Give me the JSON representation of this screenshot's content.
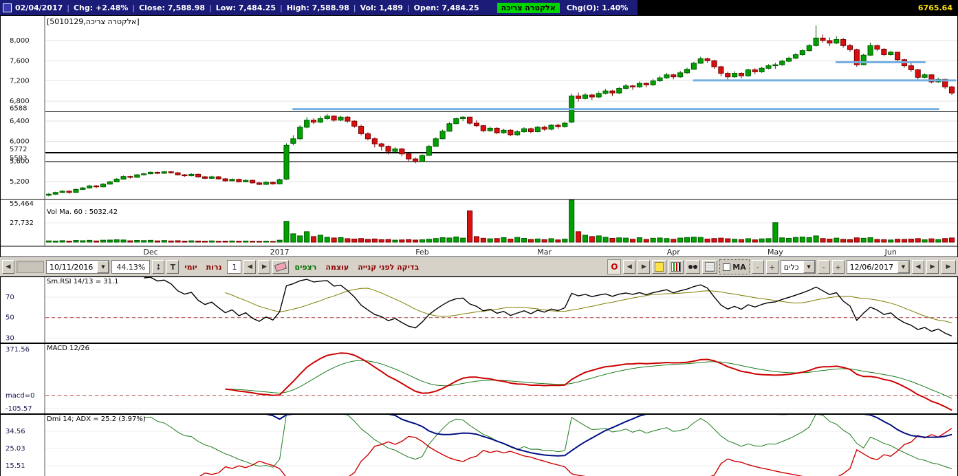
{
  "top_bar": {
    "segments": [
      "02/04/2017",
      "Chg: +2.48%",
      "Close: 7,588.98",
      "Low: 7,484.25",
      "High: 7,588.98",
      "Vol: 1,489",
      "Open: 7,484.25"
    ],
    "symbol_badge": "אלקטרה צריכה",
    "chg_o": "Chg(O): 1.40%",
    "last_value": "6765.64"
  },
  "icons": {
    "left": "◀",
    "right": "▶",
    "down": "▼",
    "up_down": "↕"
  },
  "main_chart": {
    "symbol_label": "[5010129,אלקטרה צריכה]",
    "y_ticks": [
      {
        "value": 8000,
        "label": "8,000"
      },
      {
        "value": 7600,
        "label": "7,600"
      },
      {
        "value": 7200,
        "label": "7,200"
      },
      {
        "value": 6800,
        "label": "6,800"
      },
      {
        "value": 6400,
        "label": "6,400"
      },
      {
        "value": 6000,
        "label": "6,000"
      },
      {
        "value": 5600,
        "label": "5,600"
      },
      {
        "value": 5200,
        "label": "5,200"
      }
    ],
    "price_range": [
      4845,
      8505
    ],
    "support_lines": [
      {
        "value": 6588,
        "label": "6588",
        "weight": 1
      },
      {
        "value": 5772,
        "label": "5772",
        "weight": 2
      },
      {
        "value": 5593,
        "label": "5593",
        "weight": 1
      }
    ],
    "blue_lines": [
      {
        "value": 6640,
        "from": 36,
        "to": 131
      },
      {
        "value": 7210,
        "from": 95,
        "to": 134
      },
      {
        "value": 7570,
        "from": 116,
        "to": 129
      }
    ],
    "x_labels": [
      {
        "label": "Dec",
        "index": 15
      },
      {
        "label": "2017",
        "index": 34
      },
      {
        "label": "Feb",
        "index": 55
      },
      {
        "label": "Mar",
        "index": 73
      },
      {
        "label": "Apr",
        "index": 92
      },
      {
        "label": "May",
        "index": 107
      },
      {
        "label": "Jun",
        "index": 124
      }
    ],
    "volume": {
      "label": "Vol Ma. 60 : 5032.42",
      "ticks": [
        {
          "value": 55464,
          "label": "55,464"
        },
        {
          "value": 27732,
          "label": "27,732"
        }
      ]
    }
  },
  "chart_data": {
    "type": "candlestick",
    "title": "אלקטרה צריכה (5010129)",
    "x_axis": "Nov 2016 - Jun 2017 (daily)",
    "ylim": [
      4845,
      8505
    ],
    "ohlcv": [
      [
        4930,
        4975,
        4905,
        4950,
        1800
      ],
      [
        4950,
        5000,
        4935,
        4985,
        1600
      ],
      [
        4985,
        5030,
        4970,
        5010,
        2100
      ],
      [
        5010,
        5025,
        4960,
        4985,
        1500
      ],
      [
        4985,
        5065,
        4975,
        5045,
        2400
      ],
      [
        5045,
        5095,
        5030,
        5075,
        2000
      ],
      [
        5075,
        5135,
        5060,
        5115,
        2600
      ],
      [
        5115,
        5130,
        5070,
        5095,
        1700
      ],
      [
        5095,
        5170,
        5085,
        5150,
        2800
      ],
      [
        5150,
        5215,
        5140,
        5195,
        3000
      ],
      [
        5195,
        5270,
        5185,
        5250,
        3400
      ],
      [
        5250,
        5320,
        5240,
        5300,
        3100
      ],
      [
        5300,
        5315,
        5260,
        5285,
        1900
      ],
      [
        5285,
        5350,
        5275,
        5335,
        2500
      ],
      [
        5335,
        5375,
        5320,
        5355,
        2200
      ],
      [
        5355,
        5405,
        5345,
        5385,
        2600
      ],
      [
        5385,
        5400,
        5345,
        5365,
        1800
      ],
      [
        5365,
        5415,
        5355,
        5395,
        2300
      ],
      [
        5395,
        5410,
        5355,
        5375,
        1700
      ],
      [
        5375,
        5390,
        5320,
        5335,
        2000
      ],
      [
        5335,
        5350,
        5295,
        5315,
        1500
      ],
      [
        5315,
        5365,
        5305,
        5345,
        1900
      ],
      [
        5345,
        5360,
        5280,
        5295,
        1600
      ],
      [
        5295,
        5310,
        5248,
        5265,
        1400
      ],
      [
        5265,
        5315,
        5255,
        5295,
        1800
      ],
      [
        5295,
        5310,
        5240,
        5255,
        1300
      ],
      [
        5255,
        5270,
        5200,
        5215,
        1500
      ],
      [
        5215,
        5265,
        5205,
        5245,
        1700
      ],
      [
        5245,
        5260,
        5180,
        5195,
        1400
      ],
      [
        5195,
        5245,
        5185,
        5225,
        1600
      ],
      [
        5225,
        5240,
        5160,
        5175,
        1300
      ],
      [
        5175,
        5190,
        5130,
        5145,
        1200
      ],
      [
        5145,
        5205,
        5135,
        5185,
        1500
      ],
      [
        5185,
        5200,
        5140,
        5155,
        1100
      ],
      [
        5155,
        5260,
        5145,
        5240,
        2800
      ],
      [
        5250,
        5960,
        5230,
        5920,
        30000
      ],
      [
        5960,
        6120,
        5920,
        6050,
        12000
      ],
      [
        6050,
        6320,
        6030,
        6280,
        9000
      ],
      [
        6280,
        6480,
        6260,
        6420,
        15000
      ],
      [
        6420,
        6460,
        6340,
        6380,
        8000
      ],
      [
        6380,
        6500,
        6360,
        6450,
        10000
      ],
      [
        6450,
        6545,
        6430,
        6500,
        7000
      ],
      [
        6500,
        6520,
        6390,
        6420,
        6000
      ],
      [
        6420,
        6510,
        6400,
        6480,
        6500
      ],
      [
        6480,
        6500,
        6370,
        6400,
        5000
      ],
      [
        6400,
        6420,
        6270,
        6300,
        4500
      ],
      [
        6300,
        6330,
        6120,
        6150,
        5200
      ],
      [
        6150,
        6180,
        6020,
        6050,
        4000
      ],
      [
        6050,
        6080,
        5880,
        5950,
        4600
      ],
      [
        5950,
        5970,
        5820,
        5900,
        3500
      ],
      [
        5900,
        5920,
        5740,
        5800,
        3800
      ],
      [
        5800,
        5880,
        5780,
        5850,
        2900
      ],
      [
        5850,
        5870,
        5700,
        5750,
        3200
      ],
      [
        5750,
        5770,
        5590,
        5650,
        3600
      ],
      [
        5650,
        5680,
        5565,
        5600,
        3000
      ],
      [
        5600,
        5740,
        5590,
        5720,
        3400
      ],
      [
        5720,
        5930,
        5710,
        5900,
        4200
      ],
      [
        5900,
        6080,
        5890,
        6050,
        5200
      ],
      [
        6050,
        6230,
        6040,
        6200,
        6400
      ],
      [
        6200,
        6380,
        6190,
        6350,
        6000
      ],
      [
        6350,
        6470,
        6340,
        6450,
        7500
      ],
      [
        6450,
        6500,
        6400,
        6480,
        5800
      ],
      [
        6480,
        6490,
        6330,
        6360,
        45000
      ],
      [
        6360,
        6420,
        6280,
        6310,
        8000
      ],
      [
        6310,
        6330,
        6180,
        6210,
        5600
      ],
      [
        6210,
        6290,
        6190,
        6260,
        4800
      ],
      [
        6260,
        6280,
        6140,
        6170,
        5200
      ],
      [
        6170,
        6250,
        6150,
        6220,
        6500
      ],
      [
        6220,
        6240,
        6100,
        6130,
        4400
      ],
      [
        6130,
        6220,
        6110,
        6190,
        6800
      ],
      [
        6190,
        6280,
        6170,
        6250,
        5400
      ],
      [
        6250,
        6270,
        6160,
        6190,
        3800
      ],
      [
        6190,
        6300,
        6180,
        6280,
        4600
      ],
      [
        6280,
        6310,
        6210,
        6240,
        3500
      ],
      [
        6240,
        6340,
        6220,
        6320,
        5000
      ],
      [
        6320,
        6350,
        6250,
        6290,
        3200
      ],
      [
        6290,
        6390,
        6270,
        6360,
        4400
      ],
      [
        6380,
        6950,
        6360,
        6900,
        62000
      ],
      [
        6900,
        6970,
        6790,
        6850,
        15000
      ],
      [
        6850,
        6960,
        6830,
        6920,
        10000
      ],
      [
        6920,
        6940,
        6820,
        6880,
        8000
      ],
      [
        6880,
        6990,
        6860,
        6950,
        9000
      ],
      [
        6950,
        7040,
        6930,
        7000,
        7000
      ],
      [
        7000,
        7020,
        6900,
        6960,
        5500
      ],
      [
        6960,
        7080,
        6940,
        7050,
        6200
      ],
      [
        7050,
        7140,
        7030,
        7100,
        5800
      ],
      [
        7100,
        7120,
        7020,
        7080,
        4200
      ],
      [
        7080,
        7190,
        7060,
        7150,
        6400
      ],
      [
        7150,
        7170,
        7070,
        7120,
        3900
      ],
      [
        7120,
        7240,
        7100,
        7200,
        5600
      ],
      [
        7200,
        7300,
        7180,
        7260,
        6000
      ],
      [
        7260,
        7360,
        7240,
        7320,
        5200
      ],
      [
        7320,
        7340,
        7230,
        7280,
        4100
      ],
      [
        7280,
        7400,
        7260,
        7360,
        5900
      ],
      [
        7360,
        7460,
        7340,
        7430,
        6600
      ],
      [
        7430,
        7580,
        7420,
        7550,
        7200
      ],
      [
        7550,
        7680,
        7540,
        7640,
        6800
      ],
      [
        7640,
        7660,
        7560,
        7600,
        4500
      ],
      [
        7600,
        7620,
        7440,
        7480,
        5200
      ],
      [
        7480,
        7500,
        7290,
        7350,
        5800
      ],
      [
        7350,
        7380,
        7210,
        7280,
        4900
      ],
      [
        7280,
        7390,
        7260,
        7350,
        4200
      ],
      [
        7350,
        7370,
        7250,
        7300,
        3600
      ],
      [
        7300,
        7440,
        7280,
        7420,
        5000
      ],
      [
        7420,
        7450,
        7330,
        7380,
        3300
      ],
      [
        7380,
        7480,
        7360,
        7450,
        4700
      ],
      [
        7450,
        7530,
        7430,
        7500,
        5100
      ],
      [
        7500,
        7560,
        7440,
        7520,
        28000
      ],
      [
        7520,
        7620,
        7500,
        7590,
        6200
      ],
      [
        7590,
        7680,
        7570,
        7650,
        5400
      ],
      [
        7650,
        7750,
        7630,
        7720,
        6800
      ],
      [
        7720,
        7830,
        7700,
        7800,
        7400
      ],
      [
        7800,
        7930,
        7780,
        7900,
        6600
      ],
      [
        7900,
        8300,
        7880,
        8050,
        9000
      ],
      [
        8050,
        8120,
        7960,
        8000,
        5200
      ],
      [
        8000,
        8060,
        7890,
        7950,
        4400
      ],
      [
        7950,
        8090,
        7930,
        8020,
        5800
      ],
      [
        8020,
        8050,
        7860,
        7900,
        4000
      ],
      [
        7900,
        7930,
        7780,
        7820,
        3600
      ],
      [
        7820,
        7840,
        7480,
        7520,
        6200
      ],
      [
        7520,
        7740,
        7510,
        7710,
        5600
      ],
      [
        7710,
        7960,
        7700,
        7900,
        6400
      ],
      [
        7900,
        7920,
        7790,
        7830,
        3800
      ],
      [
        7830,
        7850,
        7690,
        7720,
        3500
      ],
      [
        7720,
        7800,
        7700,
        7770,
        3100
      ],
      [
        7770,
        7780,
        7590,
        7620,
        4200
      ],
      [
        7620,
        7640,
        7460,
        7500,
        3900
      ],
      [
        7500,
        7560,
        7380,
        7420,
        4400
      ],
      [
        7420,
        7440,
        7230,
        7270,
        5100
      ],
      [
        7270,
        7350,
        7250,
        7320,
        3400
      ],
      [
        7320,
        7330,
        7150,
        7180,
        4800
      ],
      [
        7180,
        7260,
        7160,
        7230,
        3600
      ],
      [
        7230,
        7240,
        7040,
        7080,
        5200
      ],
      [
        7080,
        7100,
        6920,
        6960,
        6000
      ]
    ]
  },
  "toolbar": {
    "from_date": "10/11/2016",
    "percent": "44.13%",
    "t_button": "T",
    "daily": "יומי",
    "candles": "נרות",
    "interval": "1",
    "sequences": "רצפים",
    "power": "עוצמה",
    "pre_buy_check": "בדיקה לפני קנייה",
    "o_button": "O",
    "ma_toggle": "MA",
    "minus": "-",
    "plus": "+",
    "tools": "כלים",
    "to_date": "12/06/2017"
  },
  "rsi_panel": {
    "label": "Sm.RSI 14/13 = 31.1",
    "period": 14,
    "smooth": 13,
    "last": 31.1,
    "ticks": [
      {
        "value": 70,
        "label": "70"
      },
      {
        "value": 50,
        "label": "50"
      },
      {
        "value": 30,
        "label": "30"
      }
    ],
    "range": [
      25,
      90
    ],
    "dashed_at": 50
  },
  "macd_panel": {
    "label": "MACD 12/26",
    "fast": 12,
    "slow": 26,
    "signal": 9,
    "ticks": [
      {
        "value": 371.56,
        "label": "371.56"
      },
      {
        "value": 0,
        "label": "macd=0"
      },
      {
        "value": -105.57,
        "label": "-105.57"
      }
    ],
    "range": [
      -150,
      420
    ],
    "dashed_at": 0
  },
  "dmi_panel": {
    "label": "Dmi 14; ADX = 25.2 (3.97%)",
    "period": 14,
    "adx_last": 25.2,
    "ticks": [
      {
        "value": 34.56,
        "label": "34.56"
      },
      {
        "value": 25.03,
        "label": "25.03"
      },
      {
        "value": 15.51,
        "label": "15.51"
      }
    ],
    "range": [
      9,
      44
    ]
  },
  "colors": {
    "up": "#00a000",
    "up_edge": "#005c00",
    "down": "#d81010",
    "down_edge": "#7a0000",
    "trend_blue": "#74b0e2",
    "rsi_line": "#000000",
    "rsi_smooth": "#7d7d00",
    "macd_line": "#cc0000",
    "macd_signal": "#1a7a1a",
    "adx": "#000f82",
    "pdi": "#1a7a1a",
    "ndi": "#cc0000",
    "dashed": "#b43c3c"
  }
}
